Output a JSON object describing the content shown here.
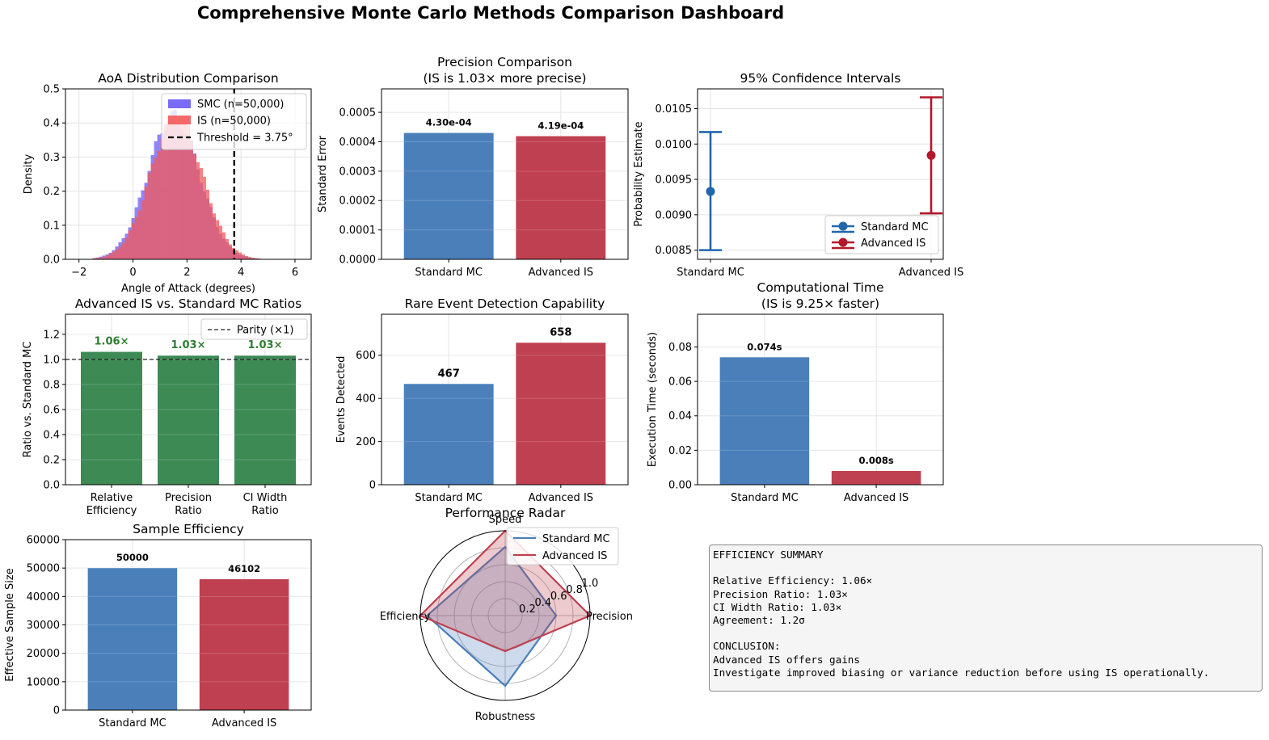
{
  "dashboard": {
    "title": "Comprehensive Monte Carlo Methods Comparison Dashboard"
  },
  "colors": {
    "smc": "#4a7fba",
    "is": "#bf4050",
    "ratio": "#3d8a55",
    "ratio_label": "#2e7d32",
    "ci_smc": "#2166ac",
    "ci_is": "#b2182b",
    "hist_smc": "#6a5cf5",
    "hist_is": "#f25a5a"
  },
  "chart_data": [
    {
      "id": "aoa",
      "type": "histogram",
      "title": "AoA Distribution Comparison",
      "xlabel": "Angle of Attack (degrees)",
      "ylabel": "Density",
      "xlim": [
        -2.5,
        6.6
      ],
      "ylim": [
        0,
        0.5
      ],
      "xticks": [
        -2,
        0,
        2,
        4,
        6
      ],
      "yticks": [
        0.0,
        0.1,
        0.2,
        0.3,
        0.4,
        0.5
      ],
      "grid": true,
      "legend_position": "top-right",
      "series": [
        {
          "name": "SMC (n=50,000)",
          "mean": 1.5,
          "sd": 0.95
        },
        {
          "name": "IS (n=50,000)",
          "mean": 1.6,
          "sd": 0.95
        }
      ],
      "threshold": {
        "label": "Threshold = 3.75°",
        "value": 3.75
      }
    },
    {
      "id": "precision",
      "type": "bar",
      "title": "Precision Comparison",
      "subtitle": "(IS is 1.03× more precise)",
      "ylabel": "Standard Error",
      "categories": [
        "Standard MC",
        "Advanced IS"
      ],
      "values": [
        0.00043,
        0.000419
      ],
      "labels": [
        "4.30e-04",
        "4.19e-04"
      ],
      "ylim": [
        0,
        0.00058
      ],
      "yticks": [
        "0.0000",
        "0.0001",
        "0.0002",
        "0.0003",
        "0.0004",
        "0.0005"
      ],
      "ytick_values": [
        0,
        0.0001,
        0.0002,
        0.0003,
        0.0004,
        0.0005
      ],
      "grid": true
    },
    {
      "id": "ci",
      "type": "errorbar",
      "title": "95% Confidence Intervals",
      "ylabel": "Probability Estimate",
      "categories": [
        "Standard MC",
        "Advanced IS"
      ],
      "estimates": [
        0.00933,
        0.00984
      ],
      "lower": [
        0.0085,
        0.00902
      ],
      "upper": [
        0.01017,
        0.01066
      ],
      "ylim": [
        0.00837,
        0.01078
      ],
      "yticks": [
        "0.0085",
        "0.0090",
        "0.0095",
        "0.0100",
        "0.0105"
      ],
      "ytick_values": [
        0.0085,
        0.009,
        0.0095,
        0.01,
        0.0105
      ],
      "legend": [
        "Standard MC",
        "Advanced IS"
      ],
      "legend_position": "lower-right",
      "grid": true
    },
    {
      "id": "ratios",
      "type": "bar",
      "title": "Advanced IS vs. Standard MC Ratios",
      "ylabel": "Ratio vs. Standard MC",
      "categories": [
        [
          "Relative",
          "Efficiency"
        ],
        [
          "Precision",
          "Ratio"
        ],
        [
          "CI Width",
          "Ratio"
        ]
      ],
      "values": [
        1.06,
        1.03,
        1.03
      ],
      "labels": [
        "1.06×",
        "1.03×",
        "1.03×"
      ],
      "ylim": [
        0,
        1.36
      ],
      "yticks": [
        "0.0",
        "0.2",
        "0.4",
        "0.6",
        "0.8",
        "1.0",
        "1.2"
      ],
      "ytick_values": [
        0,
        0.2,
        0.4,
        0.6,
        0.8,
        1.0,
        1.2
      ],
      "reference": {
        "label": "Parity (×1)",
        "value": 1.0
      },
      "legend_position": "top-right",
      "grid": true
    },
    {
      "id": "rare",
      "type": "bar",
      "title": "Rare Event Detection Capability",
      "ylabel": "Events Detected",
      "categories": [
        "Standard MC",
        "Advanced IS"
      ],
      "values": [
        467,
        658
      ],
      "labels": [
        "467",
        "658"
      ],
      "ylim": [
        0,
        790
      ],
      "yticks": [
        "0",
        "200",
        "400",
        "600"
      ],
      "ytick_values": [
        0,
        200,
        400,
        600
      ],
      "grid": true
    },
    {
      "id": "time",
      "type": "bar",
      "title": "Computational Time",
      "subtitle": "(IS is 9.25× faster)",
      "ylabel": "Execution Time (seconds)",
      "categories": [
        "Standard MC",
        "Advanced IS"
      ],
      "values": [
        0.074,
        0.008
      ],
      "labels": [
        "0.074s",
        "0.008s"
      ],
      "ylim": [
        0,
        0.099
      ],
      "yticks": [
        "0.00",
        "0.02",
        "0.04",
        "0.06",
        "0.08"
      ],
      "ytick_values": [
        0,
        0.02,
        0.04,
        0.06,
        0.08
      ],
      "grid": true
    },
    {
      "id": "sample",
      "type": "bar",
      "title": "Sample Efficiency",
      "ylabel": "Effective Sample Size",
      "categories": [
        "Standard MC",
        "Advanced IS"
      ],
      "values": [
        50000,
        46102
      ],
      "labels": [
        "50000",
        "46102"
      ],
      "ylim": [
        0,
        60000
      ],
      "yticks": [
        "0",
        "10000",
        "20000",
        "30000",
        "40000",
        "50000",
        "60000"
      ],
      "ytick_values": [
        0,
        10000,
        20000,
        30000,
        40000,
        50000,
        60000
      ],
      "grid": true
    },
    {
      "id": "radar",
      "type": "radar",
      "title": "Performance Radar",
      "axes": [
        "Speed",
        "Precision",
        "Robustness",
        "Efficiency"
      ],
      "rticks": [
        "0.2",
        "0.4",
        "0.6",
        "0.8",
        "1.0"
      ],
      "rtick_values": [
        0.2,
        0.4,
        0.6,
        0.8,
        1.0
      ],
      "series": [
        {
          "name": "Standard MC",
          "values": [
            0.81,
            0.6,
            0.83,
            0.92
          ]
        },
        {
          "name": "Advanced IS",
          "values": [
            1.0,
            1.0,
            0.42,
            1.0
          ]
        }
      ],
      "legend_position": "top-right"
    }
  ],
  "summary": {
    "lines": [
      "EFFICIENCY SUMMARY",
      "",
      "Relative Efficiency: 1.06×",
      "Precision Ratio: 1.03×",
      "CI Width Ratio: 1.03×",
      "Agreement: 1.2σ",
      "",
      "CONCLUSION:",
      "Advanced IS offers gains",
      "Investigate improved biasing or variance reduction before using IS operationally."
    ]
  }
}
